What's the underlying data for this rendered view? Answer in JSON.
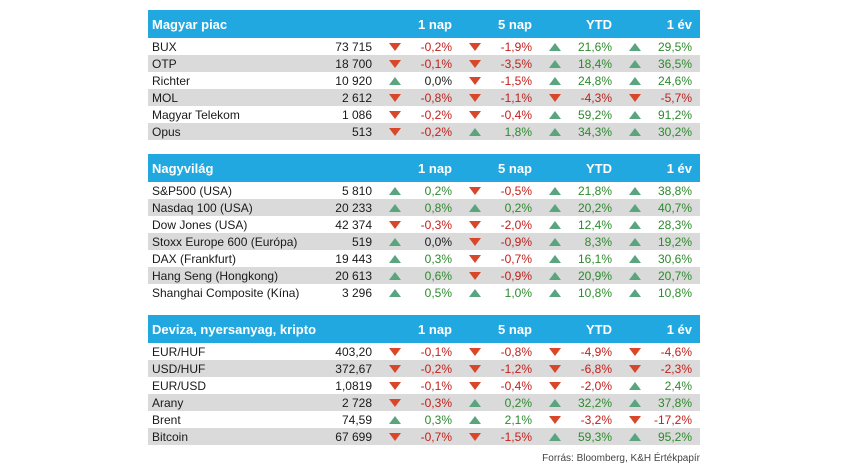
{
  "colors": {
    "header_bg": "#22a8e0",
    "up": "#2d8a2d",
    "down": "#c0201b",
    "row_alt": "#dadada"
  },
  "columns": [
    "1 nap",
    "5 nap",
    "YTD",
    "1 év"
  ],
  "sections": [
    {
      "title": "Magyar piac",
      "rows": [
        {
          "name": "BUX",
          "value": "73 715",
          "cells": [
            [
              "-0,2%",
              "down"
            ],
            [
              "-1,9%",
              "down"
            ],
            [
              "21,6%",
              "up"
            ],
            [
              "29,5%",
              "up"
            ]
          ]
        },
        {
          "name": "OTP",
          "value": "18 700",
          "cells": [
            [
              "-0,1%",
              "down"
            ],
            [
              "-3,5%",
              "down"
            ],
            [
              "18,4%",
              "up"
            ],
            [
              "36,5%",
              "up"
            ]
          ]
        },
        {
          "name": "Richter",
          "value": "10 920",
          "cells": [
            [
              "0,0%",
              "up"
            ],
            [
              "-1,5%",
              "down"
            ],
            [
              "24,8%",
              "up"
            ],
            [
              "24,6%",
              "up"
            ]
          ]
        },
        {
          "name": "MOL",
          "value": "2 612",
          "cells": [
            [
              "-0,8%",
              "down"
            ],
            [
              "-1,1%",
              "down"
            ],
            [
              "-4,3%",
              "down"
            ],
            [
              "-5,7%",
              "down"
            ]
          ]
        },
        {
          "name": "Magyar Telekom",
          "value": "1 086",
          "cells": [
            [
              "-0,2%",
              "down"
            ],
            [
              "-0,4%",
              "down"
            ],
            [
              "59,2%",
              "up"
            ],
            [
              "91,2%",
              "up"
            ]
          ]
        },
        {
          "name": "Opus",
          "value": "513",
          "cells": [
            [
              "-0,2%",
              "down"
            ],
            [
              "1,8%",
              "up"
            ],
            [
              "34,3%",
              "up"
            ],
            [
              "30,2%",
              "up"
            ]
          ]
        }
      ]
    },
    {
      "title": "Nagyvilág",
      "rows": [
        {
          "name": "S&P500 (USA)",
          "value": "5 810",
          "cells": [
            [
              "0,2%",
              "up"
            ],
            [
              "-0,5%",
              "down"
            ],
            [
              "21,8%",
              "up"
            ],
            [
              "38,8%",
              "up"
            ]
          ]
        },
        {
          "name": "Nasdaq 100 (USA)",
          "value": "20 233",
          "cells": [
            [
              "0,8%",
              "up"
            ],
            [
              "0,2%",
              "up"
            ],
            [
              "20,2%",
              "up"
            ],
            [
              "40,7%",
              "up"
            ]
          ]
        },
        {
          "name": "Dow Jones (USA)",
          "value": "42 374",
          "cells": [
            [
              "-0,3%",
              "down"
            ],
            [
              "-2,0%",
              "down"
            ],
            [
              "12,4%",
              "up"
            ],
            [
              "28,3%",
              "up"
            ]
          ]
        },
        {
          "name": "Stoxx Europe 600 (Európa)",
          "value": "519",
          "cells": [
            [
              "0,0%",
              "up"
            ],
            [
              "-0,9%",
              "down"
            ],
            [
              "8,3%",
              "up"
            ],
            [
              "19,2%",
              "up"
            ]
          ]
        },
        {
          "name": "DAX (Frankfurt)",
          "value": "19 443",
          "cells": [
            [
              "0,3%",
              "up"
            ],
            [
              "-0,7%",
              "down"
            ],
            [
              "16,1%",
              "up"
            ],
            [
              "30,6%",
              "up"
            ]
          ]
        },
        {
          "name": "Hang Seng (Hongkong)",
          "value": "20 613",
          "cells": [
            [
              "0,6%",
              "up"
            ],
            [
              "-0,9%",
              "down"
            ],
            [
              "20,9%",
              "up"
            ],
            [
              "20,7%",
              "up"
            ]
          ]
        },
        {
          "name": "Shanghai Composite (Kína)",
          "value": "3 296",
          "cells": [
            [
              "0,5%",
              "up"
            ],
            [
              "1,0%",
              "up"
            ],
            [
              "10,8%",
              "up"
            ],
            [
              "10,8%",
              "up"
            ]
          ]
        }
      ]
    },
    {
      "title": "Deviza, nyersanyag, kripto",
      "rows": [
        {
          "name": "EUR/HUF",
          "value": "403,20",
          "cells": [
            [
              "-0,1%",
              "down"
            ],
            [
              "-0,8%",
              "down"
            ],
            [
              "-4,9%",
              "down"
            ],
            [
              "-4,6%",
              "down"
            ]
          ]
        },
        {
          "name": "USD/HUF",
          "value": "372,67",
          "cells": [
            [
              "-0,2%",
              "down"
            ],
            [
              "-1,2%",
              "down"
            ],
            [
              "-6,8%",
              "down"
            ],
            [
              "-2,3%",
              "down"
            ]
          ]
        },
        {
          "name": "EUR/USD",
          "value": "1,0819",
          "cells": [
            [
              "-0,1%",
              "down"
            ],
            [
              "-0,4%",
              "down"
            ],
            [
              "-2,0%",
              "down"
            ],
            [
              "2,4%",
              "up"
            ]
          ]
        },
        {
          "name": "Arany",
          "value": "2 728",
          "cells": [
            [
              "-0,3%",
              "down"
            ],
            [
              "0,2%",
              "up"
            ],
            [
              "32,2%",
              "up"
            ],
            [
              "37,8%",
              "up"
            ]
          ]
        },
        {
          "name": "Brent",
          "value": "74,59",
          "cells": [
            [
              "0,3%",
              "up"
            ],
            [
              "2,1%",
              "up"
            ],
            [
              "-3,2%",
              "down"
            ],
            [
              "-17,2%",
              "down"
            ]
          ]
        },
        {
          "name": "Bitcoin",
          "value": "67 699",
          "cells": [
            [
              "-0,7%",
              "down"
            ],
            [
              "-1,5%",
              "down"
            ],
            [
              "59,3%",
              "up"
            ],
            [
              "95,2%",
              "up"
            ]
          ]
        }
      ]
    }
  ],
  "source": "Forrás: Bloomberg, K&H Értékpapír"
}
